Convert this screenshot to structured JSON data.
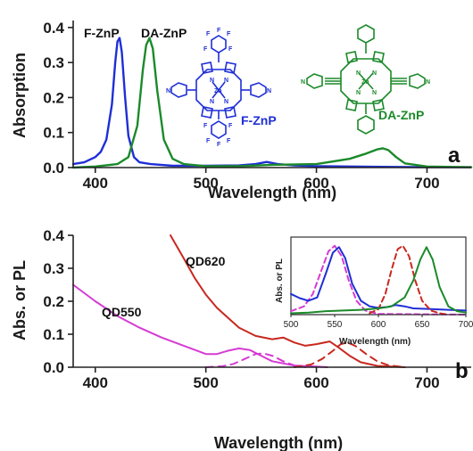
{
  "chart_data": [
    {
      "panel": "a",
      "type": "line",
      "xlabel": "Wavelength (nm)",
      "ylabel": "Absorption",
      "xlim": [
        380,
        740
      ],
      "ylim": [
        0,
        0.42
      ],
      "xticks": [
        "400",
        "500",
        "600",
        "700"
      ],
      "yticks": [
        "0.0",
        "0.1",
        "0.2",
        "0.3",
        "0.4"
      ],
      "grid": false,
      "series": [
        {
          "name": "F-ZnP",
          "color": "#1f2fd6",
          "x": [
            380,
            390,
            400,
            405,
            410,
            415,
            418,
            420,
            422,
            424,
            427,
            430,
            435,
            440,
            450,
            470,
            500,
            530,
            545,
            555,
            565,
            580,
            600,
            630,
            660,
            700,
            740
          ],
          "y": [
            0.01,
            0.015,
            0.03,
            0.045,
            0.08,
            0.18,
            0.3,
            0.36,
            0.37,
            0.33,
            0.2,
            0.09,
            0.03,
            0.015,
            0.01,
            0.005,
            0.005,
            0.006,
            0.01,
            0.016,
            0.01,
            0.006,
            0.004,
            0.003,
            0.002,
            0.001,
            0.001
          ]
        },
        {
          "name": "DA-ZnP",
          "color": "#1b8a2a",
          "x": [
            380,
            400,
            420,
            430,
            438,
            443,
            446,
            449,
            452,
            456,
            462,
            470,
            480,
            500,
            530,
            560,
            600,
            630,
            645,
            655,
            660,
            665,
            672,
            680,
            700,
            740
          ],
          "y": [
            0.0,
            0.003,
            0.01,
            0.03,
            0.12,
            0.28,
            0.35,
            0.37,
            0.34,
            0.22,
            0.08,
            0.025,
            0.01,
            0.004,
            0.004,
            0.008,
            0.01,
            0.025,
            0.04,
            0.052,
            0.055,
            0.05,
            0.03,
            0.012,
            0.003,
            0.001
          ]
        }
      ],
      "annotations": [
        "F-ZnP",
        "DA-ZnP"
      ],
      "panel_label": "a"
    },
    {
      "panel": "b",
      "type": "line",
      "xlabel": "Wavelength (nm)",
      "ylabel": "Abs. or PL",
      "xlim": [
        380,
        740
      ],
      "ylim": [
        0,
        0.4
      ],
      "xticks": [
        "400",
        "500",
        "600",
        "700"
      ],
      "yticks": [
        "0.0",
        "0.1",
        "0.2",
        "0.3",
        "0.4"
      ],
      "grid": false,
      "series": [
        {
          "name": "QD550",
          "style": "solid",
          "color": "#d63bd3",
          "x": [
            380,
            400,
            420,
            440,
            460,
            480,
            500,
            510,
            520,
            530,
            540,
            550,
            560,
            580,
            600,
            610
          ],
          "y": [
            0.25,
            0.2,
            0.155,
            0.12,
            0.09,
            0.065,
            0.04,
            0.04,
            0.05,
            0.057,
            0.052,
            0.035,
            0.018,
            0.005,
            0.002,
            0.0
          ]
        },
        {
          "name": "QD550",
          "style": "dashed",
          "color": "#d63bd3",
          "x": [
            500,
            515,
            525,
            535,
            545,
            552,
            560,
            570,
            580,
            590
          ],
          "y": [
            0.0,
            0.003,
            0.01,
            0.025,
            0.04,
            0.042,
            0.035,
            0.018,
            0.005,
            0.0
          ]
        },
        {
          "name": "QD620",
          "style": "solid",
          "color": "#c8281f",
          "x": [
            468,
            480,
            490,
            500,
            510,
            520,
            530,
            545,
            560,
            570,
            580,
            590,
            600,
            612,
            620,
            630,
            640,
            655,
            680
          ],
          "y": [
            0.4,
            0.33,
            0.27,
            0.22,
            0.18,
            0.15,
            0.12,
            0.095,
            0.085,
            0.09,
            0.075,
            0.065,
            0.07,
            0.078,
            0.06,
            0.035,
            0.015,
            0.004,
            0.0
          ]
        },
        {
          "name": "QD620",
          "style": "dashed",
          "color": "#c8281f",
          "x": [
            580,
            595,
            605,
            615,
            622,
            628,
            635,
            645,
            655,
            665,
            680
          ],
          "y": [
            0.0,
            0.008,
            0.025,
            0.05,
            0.07,
            0.075,
            0.065,
            0.04,
            0.018,
            0.006,
            0.0
          ]
        }
      ],
      "annotations": [
        "QD620",
        "QD550"
      ],
      "panel_label": "b",
      "inset": {
        "xlabel": "Wavelength (nm)",
        "ylabel": "Abs. or PL",
        "xlim": [
          500,
          700
        ],
        "ylim": [
          0,
          1.1
        ],
        "xticks": [
          "500",
          "550",
          "600",
          "650",
          "700"
        ],
        "series": [
          {
            "name": "QD550 PL",
            "style": "dashed",
            "color": "#d63bd3",
            "x": [
              500,
              515,
              525,
              535,
              543,
              550,
              558,
              566,
              575,
              585,
              600,
              700
            ],
            "y": [
              0.05,
              0.12,
              0.3,
              0.65,
              0.92,
              1.0,
              0.85,
              0.5,
              0.2,
              0.06,
              0.01,
              0.0
            ]
          },
          {
            "name": "F-ZnP abs",
            "style": "solid",
            "color": "#1f2fd6",
            "x": [
              500,
              510,
              520,
              530,
              540,
              548,
              555,
              562,
              570,
              580,
              590,
              600,
              610,
              620,
              630,
              640,
              660,
              680,
              700
            ],
            "y": [
              0.3,
              0.24,
              0.2,
              0.25,
              0.6,
              0.9,
              0.98,
              0.82,
              0.45,
              0.2,
              0.12,
              0.1,
              0.11,
              0.14,
              0.12,
              0.09,
              0.08,
              0.07,
              0.06
            ]
          },
          {
            "name": "QD620 PL",
            "style": "dashed",
            "color": "#c8281f",
            "x": [
              590,
              600,
              608,
              615,
              622,
              628,
              635,
              642,
              650,
              660,
              670,
              680
            ],
            "y": [
              0.02,
              0.08,
              0.3,
              0.65,
              0.95,
              1.0,
              0.85,
              0.5,
              0.2,
              0.06,
              0.02,
              0.0
            ]
          },
          {
            "name": "DA-ZnP abs",
            "style": "solid",
            "color": "#1b8a2a",
            "x": [
              500,
              520,
              540,
              560,
              580,
              600,
              615,
              630,
              640,
              648,
              655,
              662,
              670,
              680,
              690,
              700
            ],
            "y": [
              0.02,
              0.03,
              0.05,
              0.06,
              0.07,
              0.09,
              0.12,
              0.25,
              0.5,
              0.8,
              0.98,
              0.8,
              0.4,
              0.12,
              0.05,
              0.03
            ]
          }
        ]
      }
    }
  ],
  "structures": {
    "f_label": "F-ZnP",
    "da_label": "DA-ZnP",
    "f_color": "#1f2fd6",
    "da_color": "#1b8a2a",
    "f_atoms": [
      "F",
      "F",
      "F",
      "F",
      "F",
      "F",
      "F",
      "F",
      "F",
      "F",
      "N",
      "N",
      "N",
      "N",
      "N",
      "N",
      "Zn"
    ],
    "da_atoms": [
      "N",
      "N",
      "N",
      "N",
      "N",
      "N",
      "Zn"
    ]
  }
}
